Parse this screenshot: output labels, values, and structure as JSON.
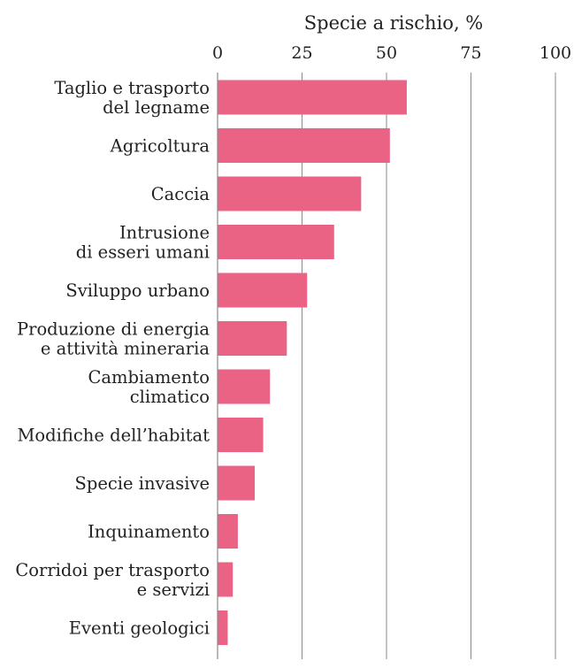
{
  "chart_data": {
    "type": "bar",
    "orientation": "horizontal",
    "title": "Specie a rischio, %",
    "xlabel": "Specie a rischio, %",
    "ylabel": "",
    "xlim": [
      0,
      100
    ],
    "ticks": [
      0,
      25,
      50,
      75,
      100
    ],
    "tick_labels": [
      "0",
      "25",
      "50",
      "75",
      "100"
    ],
    "grid": true,
    "bar_color": "#ea6284",
    "categories": [
      [
        "Taglio e trasporto",
        "del legname"
      ],
      [
        "Agricoltura"
      ],
      [
        "Caccia"
      ],
      [
        "Intrusione",
        "di esseri umani"
      ],
      [
        "Sviluppo urbano"
      ],
      [
        "Produzione di energia",
        "e attività mineraria"
      ],
      [
        "Cambiamento",
        "climatico"
      ],
      [
        "Modifiche dell’habitat"
      ],
      [
        "Specie invasive"
      ],
      [
        "Inquinamento"
      ],
      [
        "Corridoi per trasporto",
        "e servizi"
      ],
      [
        "Eventi geologici"
      ]
    ],
    "values": [
      56,
      51,
      42.5,
      34.5,
      26.5,
      20.5,
      15.5,
      13.5,
      11,
      6,
      4.5,
      3
    ]
  }
}
